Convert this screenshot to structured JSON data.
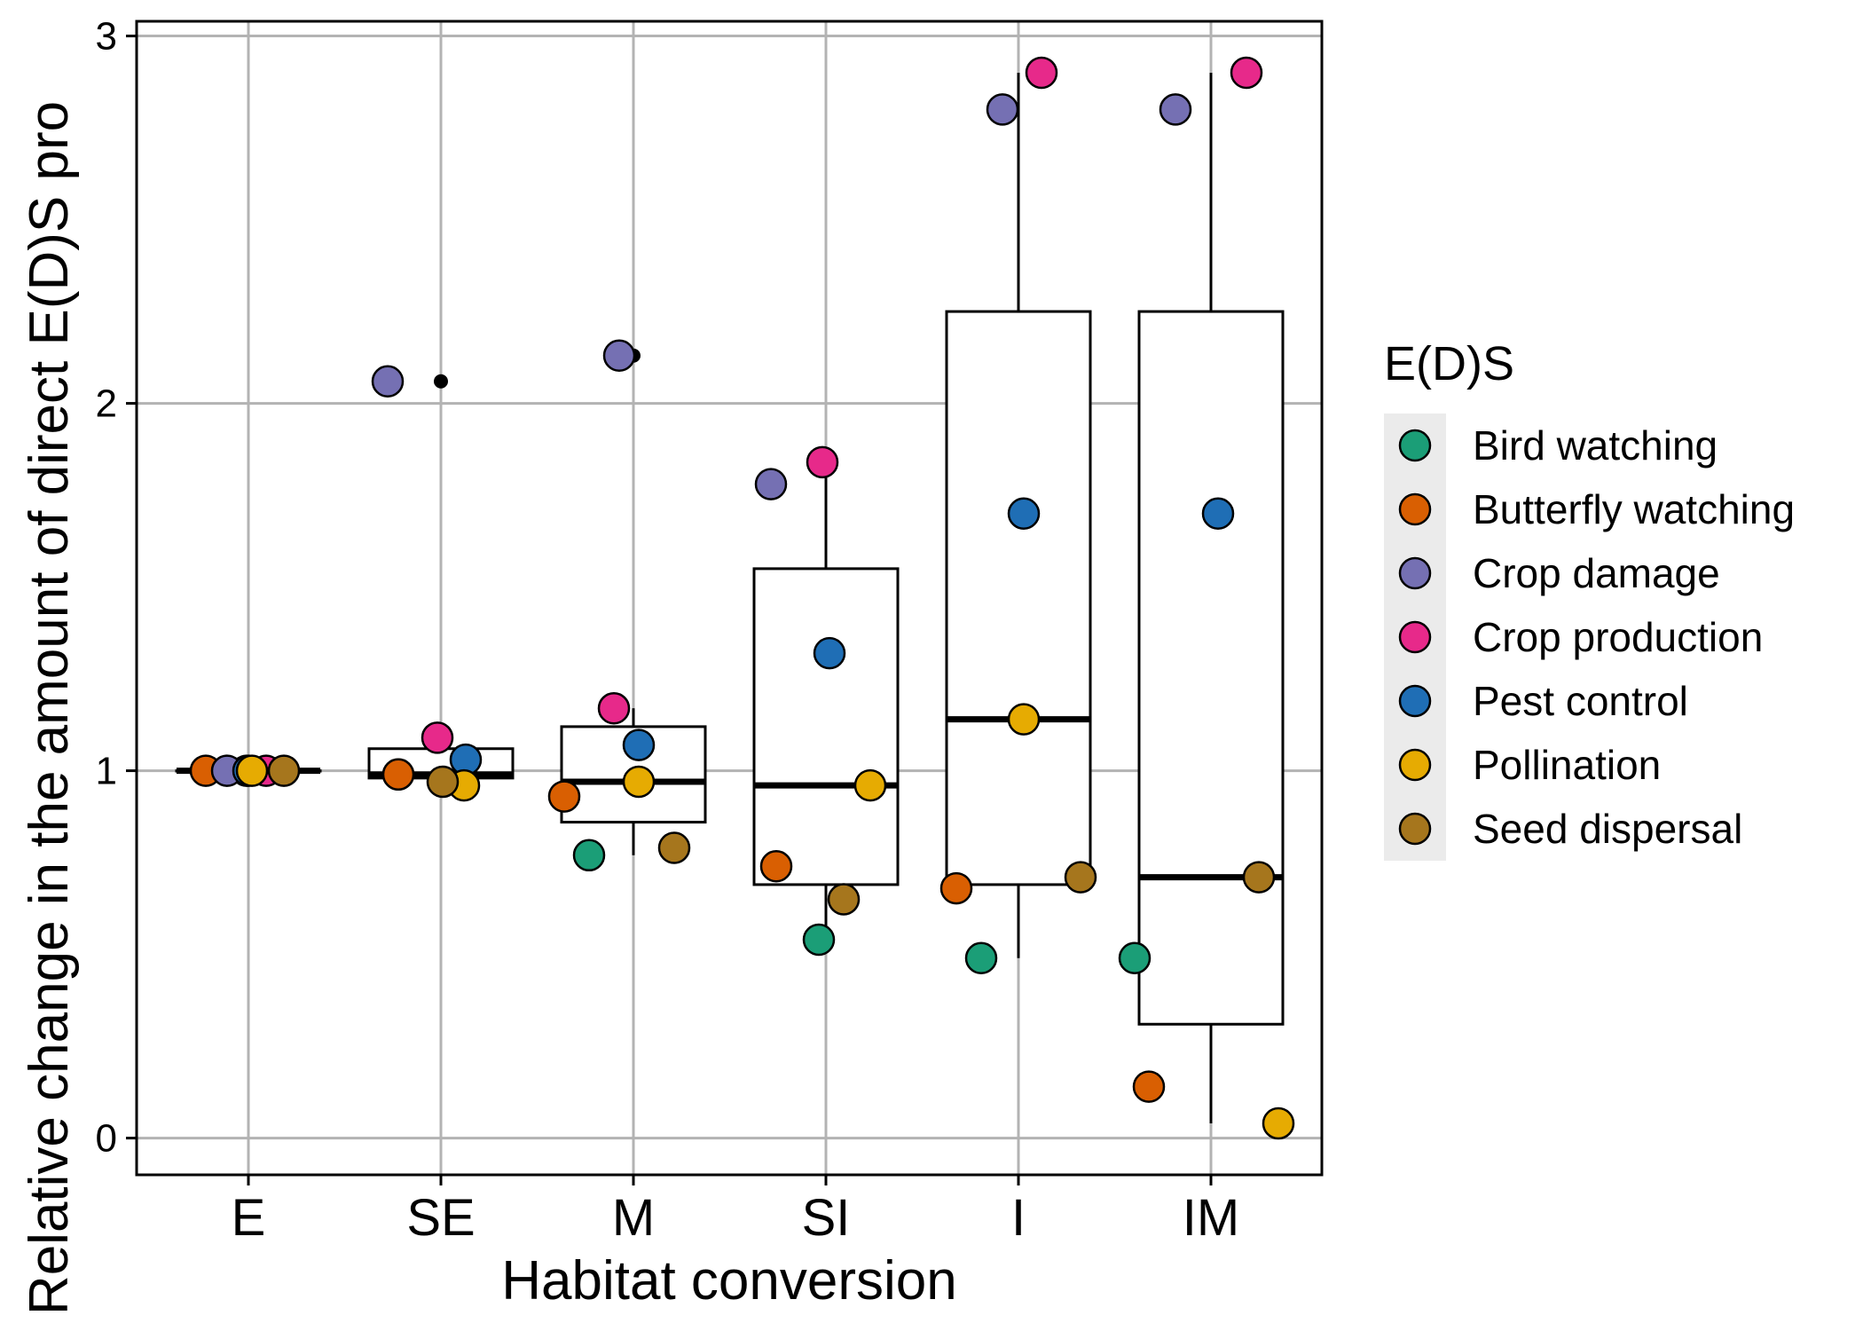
{
  "chart_data": {
    "type": "box",
    "xlabel": "Habitat conversion",
    "ylabel": "Relative change in the amount of direct E(D)S pro",
    "categories": [
      "E",
      "SE",
      "M",
      "SI",
      "I",
      "IM"
    ],
    "ylim": [
      -0.1,
      3.04
    ],
    "yticks": [
      0,
      1,
      2,
      3
    ],
    "ytick_labels": [
      "0",
      "1",
      "2",
      "3"
    ],
    "grid": true,
    "legend": {
      "title": "E(D)S",
      "placement": "right",
      "entries": [
        "Bird watching",
        "Butterfly watching",
        "Crop damage",
        "Crop production",
        "Pest control",
        "Pollination",
        "Seed dispersal"
      ]
    },
    "colors": {
      "Bird watching": "#1b9e77",
      "Butterfly watching": "#d95f02",
      "Crop damage": "#7570b3",
      "Crop production": "#e7298a",
      "Pest control": "#1f6eb5",
      "Pollination": "#e6ab02",
      "Seed dispersal": "#a6761d"
    },
    "boxes": [
      {
        "category": "E",
        "min": 1.0,
        "q1": 1.0,
        "median": 1.0,
        "q3": 1.0,
        "max": 1.0,
        "outliers": []
      },
      {
        "category": "SE",
        "min": 0.96,
        "q1": 0.98,
        "median": 0.99,
        "q3": 1.06,
        "max": 1.09,
        "outliers": [
          2.06
        ]
      },
      {
        "category": "M",
        "min": 0.77,
        "q1": 0.86,
        "median": 0.97,
        "q3": 1.12,
        "max": 1.17,
        "outliers": [
          2.13
        ]
      },
      {
        "category": "SI",
        "min": 0.54,
        "q1": 0.69,
        "median": 0.96,
        "q3": 1.55,
        "max": 1.84,
        "outliers": []
      },
      {
        "category": "I",
        "min": 0.49,
        "q1": 0.69,
        "median": 1.14,
        "q3": 2.25,
        "max": 2.9,
        "outliers": []
      },
      {
        "category": "IM",
        "min": 0.04,
        "q1": 0.31,
        "median": 0.71,
        "q3": 2.25,
        "max": 2.9,
        "outliers": []
      }
    ],
    "series": [
      {
        "name": "Bird watching",
        "values": [
          1.0,
          0.99,
          0.77,
          0.54,
          0.49,
          0.49
        ]
      },
      {
        "name": "Butterfly watching",
        "values": [
          1.0,
          0.99,
          0.93,
          0.74,
          0.68,
          0.14
        ]
      },
      {
        "name": "Crop damage",
        "values": [
          1.0,
          2.06,
          2.13,
          1.78,
          2.8,
          2.8
        ]
      },
      {
        "name": "Crop production",
        "values": [
          1.0,
          1.09,
          1.17,
          1.84,
          2.9,
          2.9
        ]
      },
      {
        "name": "Pest control",
        "values": [
          1.0,
          1.03,
          1.07,
          1.32,
          1.7,
          1.7
        ]
      },
      {
        "name": "Pollination",
        "values": [
          1.0,
          0.96,
          0.97,
          0.96,
          1.14,
          0.04
        ]
      },
      {
        "name": "Seed dispersal",
        "values": [
          1.0,
          0.97,
          0.79,
          0.65,
          0.71,
          0.71
        ]
      }
    ]
  }
}
